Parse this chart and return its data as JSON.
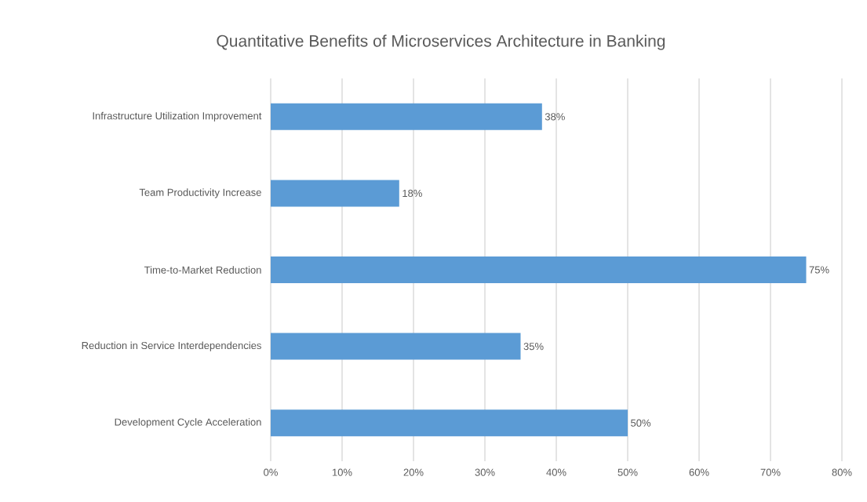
{
  "chart_data": {
    "type": "bar",
    "orientation": "horizontal",
    "title": "Quantitative Benefits of Microservices Architecture in Banking",
    "categories": [
      "Infrastructure Utilization Improvement",
      "Team Productivity Increase",
      "Time-to-Market Reduction",
      "Reduction in Service Interdependencies",
      "Development Cycle Acceleration"
    ],
    "values": [
      38,
      18,
      75,
      35,
      50
    ],
    "value_labels": [
      "38%",
      "18%",
      "75%",
      "35%",
      "50%"
    ],
    "color": "#5b9bd5",
    "xlim": [
      0,
      80
    ],
    "xticks": [
      {
        "value": 0,
        "label": "0%"
      },
      {
        "value": 10,
        "label": "10%"
      },
      {
        "value": 20,
        "label": "20%"
      },
      {
        "value": 30,
        "label": "30%"
      },
      {
        "value": 40,
        "label": "40%"
      },
      {
        "value": 50,
        "label": "50%"
      },
      {
        "value": 60,
        "label": "60%"
      },
      {
        "value": 70,
        "label": "70%"
      },
      {
        "value": 80,
        "label": "80%"
      }
    ],
    "grid": "x"
  }
}
